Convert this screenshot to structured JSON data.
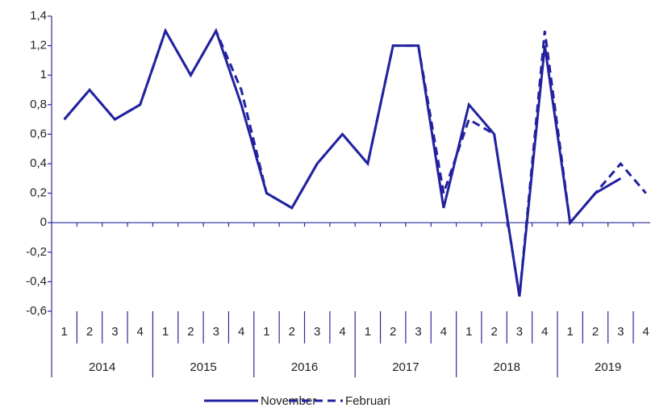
{
  "chart_data": {
    "type": "line",
    "categories": [
      "1",
      "2",
      "3",
      "4",
      "1",
      "2",
      "3",
      "4",
      "1",
      "2",
      "3",
      "4",
      "1",
      "2",
      "3",
      "4",
      "1",
      "2",
      "3",
      "4",
      "1",
      "2",
      "3",
      "4"
    ],
    "category_groups": [
      "2014",
      "2015",
      "2016",
      "2017",
      "2018",
      "2019"
    ],
    "series": [
      {
        "name": "November",
        "color": "#2222a0",
        "dash": false,
        "values": [
          0.7,
          0.9,
          0.7,
          0.8,
          1.3,
          1.0,
          1.3,
          0.8,
          0.2,
          0.1,
          0.4,
          0.6,
          0.4,
          1.2,
          1.2,
          0.1,
          0.8,
          0.6,
          -0.5,
          1.2,
          0.0,
          0.2,
          0.3,
          null
        ]
      },
      {
        "name": "Februari",
        "color": "#2222a0",
        "dash": true,
        "values": [
          0.7,
          0.9,
          0.7,
          0.8,
          1.3,
          1.0,
          1.3,
          0.9,
          0.2,
          0.1,
          0.4,
          0.6,
          0.4,
          1.2,
          1.2,
          0.2,
          0.7,
          0.6,
          -0.5,
          1.3,
          0.0,
          0.2,
          0.4,
          0.2
        ]
      }
    ],
    "ylim": [
      -0.6,
      1.4
    ],
    "yticks": [
      {
        "value": -0.6,
        "label": "-0,6"
      },
      {
        "value": -0.4,
        "label": "-0,4"
      },
      {
        "value": -0.2,
        "label": "-0,2"
      },
      0,
      {
        "value": 0.2,
        "label": "0,2"
      },
      {
        "value": 0.4,
        "label": "0,4"
      },
      {
        "value": 0.6,
        "label": "0,6"
      },
      {
        "value": 0.8,
        "label": "0,8"
      },
      1,
      {
        "value": 1.2,
        "label": "1,2"
      },
      {
        "value": 1.4,
        "label": "1,4"
      }
    ],
    "grid": false,
    "legend": "bottom"
  }
}
